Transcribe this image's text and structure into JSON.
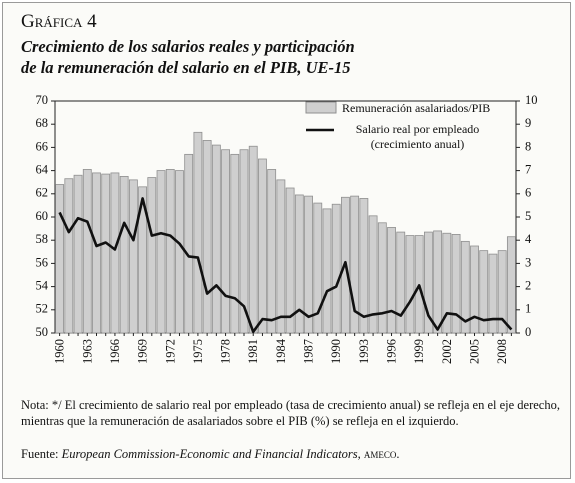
{
  "chart_data": {
    "type": "bar_line",
    "title": "Gráfica 4",
    "subtitle": [
      "Crecimiento de los salarios reales y participación",
      "de la remuneración del salario en el PIB, UE-15"
    ],
    "categories": [
      "1960",
      null,
      null,
      "1963",
      null,
      null,
      "1966",
      null,
      null,
      "1969",
      null,
      null,
      "1972",
      null,
      null,
      "1975",
      null,
      null,
      "1978",
      null,
      null,
      "1981",
      null,
      null,
      "1984",
      null,
      null,
      "1987",
      null,
      null,
      "1990",
      null,
      null,
      "1993",
      null,
      null,
      "1996",
      null,
      null,
      "1999",
      null,
      null,
      "2002",
      null,
      null,
      "2005",
      null,
      null,
      "2008",
      null
    ],
    "series": [
      {
        "name": "Remuneración asalariados/PIB",
        "color": "#cfcfcf",
        "axis": "y",
        "values": [
          62.8,
          63.3,
          63.6,
          64.1,
          63.8,
          63.7,
          63.8,
          63.5,
          63.2,
          62.6,
          63.4,
          64.0,
          64.1,
          64.0,
          65.4,
          67.3,
          66.6,
          66.2,
          65.8,
          65.4,
          65.8,
          66.1,
          65.0,
          64.1,
          63.2,
          62.5,
          61.9,
          61.8,
          61.2,
          60.7,
          61.1,
          61.7,
          61.8,
          61.6,
          60.1,
          59.5,
          59.1,
          58.7,
          58.4,
          58.4,
          58.7,
          58.8,
          58.6,
          58.5,
          57.9,
          57.5,
          57.1,
          56.8,
          57.1,
          58.3
        ]
      },
      {
        "name": "Salario real por empleado (crecimiento anual)",
        "color": "#111111",
        "axis": "y2",
        "values": [
          5.2,
          4.35,
          4.95,
          4.8,
          3.75,
          3.9,
          3.6,
          4.75,
          4.0,
          5.8,
          4.2,
          4.3,
          4.2,
          3.85,
          3.3,
          3.25,
          1.7,
          2.05,
          1.6,
          1.5,
          1.15,
          0.05,
          0.6,
          0.55,
          0.7,
          0.7,
          1.0,
          0.7,
          0.85,
          1.8,
          2.0,
          3.05,
          0.95,
          0.7,
          0.8,
          0.85,
          0.95,
          0.75,
          1.35,
          2.05,
          0.75,
          0.15,
          0.85,
          0.8,
          0.5,
          0.7,
          0.55,
          0.6,
          0.6,
          0.15
        ]
      }
    ],
    "ylim": [
      50,
      70
    ],
    "yticks": [
      50,
      52,
      54,
      56,
      58,
      60,
      62,
      64,
      66,
      68,
      70
    ],
    "y2lim": [
      0,
      10
    ],
    "y2ticks": [
      0,
      1,
      2,
      3,
      4,
      5,
      6,
      7,
      8,
      9,
      10
    ],
    "note": "Nota: */ El crecimiento de salario real por empleado (tasa de crecimiento anual) se refleja en el eje derecho, mientras que la remuneración de asalariados sobre el PIB (%) se refleja en el izquierdo.",
    "source": {
      "label": "Fuente:",
      "text": "European Commission-Economic and Financial Indicators,",
      "org": "ameco."
    }
  }
}
